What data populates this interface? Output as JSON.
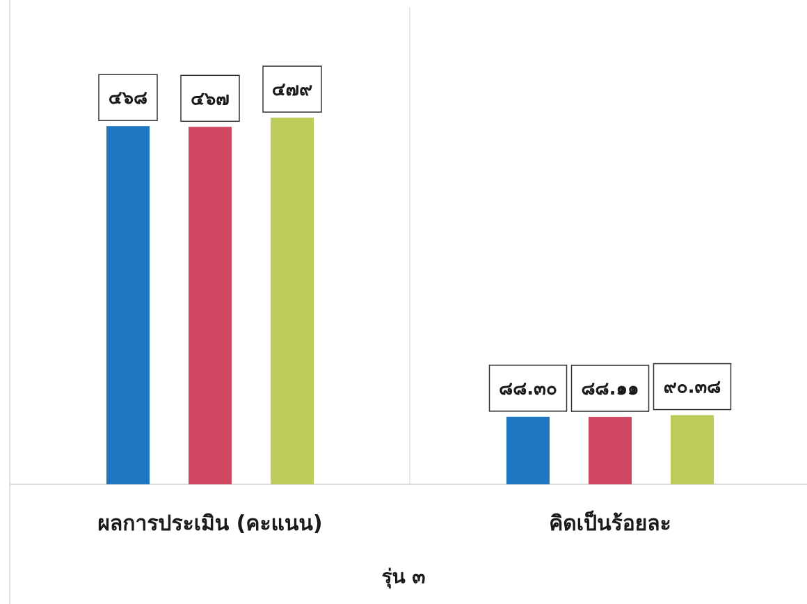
{
  "chart_data": {
    "type": "bar",
    "categories": [
      "ผลการประเมิน (คะแนน)",
      "คิดเป็นร้อยละ"
    ],
    "series": [
      {
        "values": [
          468,
          88.3
        ],
        "labels": [
          "๔๖๘",
          "๘๘.๓๐"
        ],
        "color": "#1f77c4"
      },
      {
        "values": [
          467,
          88.11
        ],
        "labels": [
          "๔๖๗",
          "๘๘.๑๑"
        ],
        "color": "#cf4760"
      },
      {
        "values": [
          479,
          90.38
        ],
        "labels": [
          "๔๗๙",
          "๙๐.๓๘"
        ],
        "color": "#bccb5a"
      }
    ],
    "xlabel": "รุ่น ๓",
    "ylabel": "",
    "ylim": [
      0,
      550
    ],
    "grid": false,
    "legend": "none"
  }
}
